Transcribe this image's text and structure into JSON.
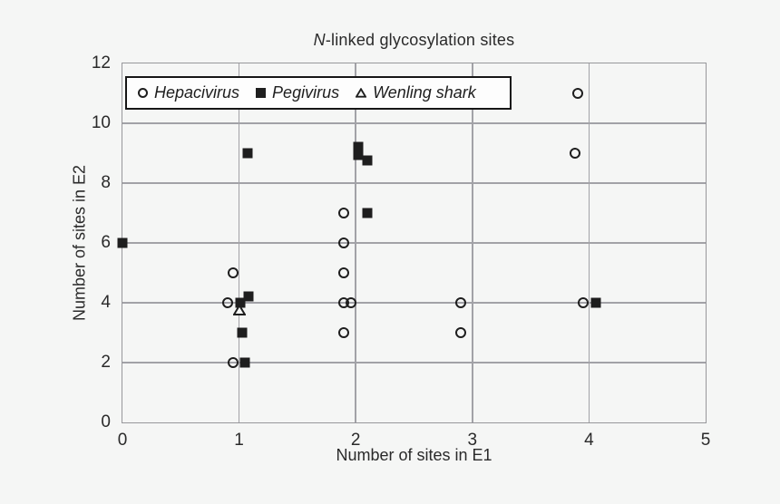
{
  "title": {
    "prefix_italic": "N",
    "rest": "-linked glycosylation sites"
  },
  "axes": {
    "x_label": "Number of sites in E1",
    "y_label": "Number of sites in E2"
  },
  "legend": {
    "items": [
      {
        "label": "Hepacivirus",
        "marker": "open-circle"
      },
      {
        "label": "Pegivirus",
        "marker": "filled-square"
      },
      {
        "label": "Wenling shark",
        "marker": "open-triangle"
      }
    ]
  },
  "colors": {
    "background": "#f5f6f5",
    "gridline": "#a2a2a7",
    "plot_border": "#97979b",
    "marker": "#1e1e1e",
    "legend_background": "#fdfdfd",
    "legend_border": "#161616",
    "text": "#2a2a2a"
  },
  "chart_data": {
    "type": "scatter",
    "title": "N-linked glycosylation sites",
    "xlabel": "Number of sites in E1",
    "ylabel": "Number of sites in E2",
    "xlim": [
      0,
      5
    ],
    "ylim": [
      0,
      12
    ],
    "x_ticks": [
      0,
      1,
      2,
      3,
      4,
      5
    ],
    "y_ticks": [
      0,
      2,
      4,
      6,
      8,
      10,
      12
    ],
    "grid": true,
    "legend_position": "top-left-inside",
    "series": [
      {
        "name": "Hepacivirus",
        "marker": "open-circle",
        "points": [
          [
            0.9,
            4
          ],
          [
            0.95,
            5
          ],
          [
            0.95,
            2
          ],
          [
            1.9,
            7
          ],
          [
            1.9,
            6
          ],
          [
            1.9,
            5
          ],
          [
            1.9,
            4
          ],
          [
            1.96,
            4
          ],
          [
            1.9,
            3
          ],
          [
            2.9,
            4
          ],
          [
            2.9,
            3
          ],
          [
            3.9,
            11
          ],
          [
            3.88,
            9
          ],
          [
            3.95,
            4
          ]
        ]
      },
      {
        "name": "Pegivirus",
        "marker": "filled-square",
        "points": [
          [
            0,
            6
          ],
          [
            1.05,
            2
          ],
          [
            1.03,
            3
          ],
          [
            1.01,
            4
          ],
          [
            1.08,
            4.2
          ],
          [
            1.07,
            9
          ],
          [
            2.02,
            9.2
          ],
          [
            2.02,
            8.95
          ],
          [
            2.1,
            8.75
          ],
          [
            2.1,
            7
          ],
          [
            4.06,
            4
          ]
        ]
      },
      {
        "name": "Wenling shark",
        "marker": "open-triangle",
        "points": [
          [
            1.0,
            3.75
          ]
        ]
      }
    ]
  }
}
